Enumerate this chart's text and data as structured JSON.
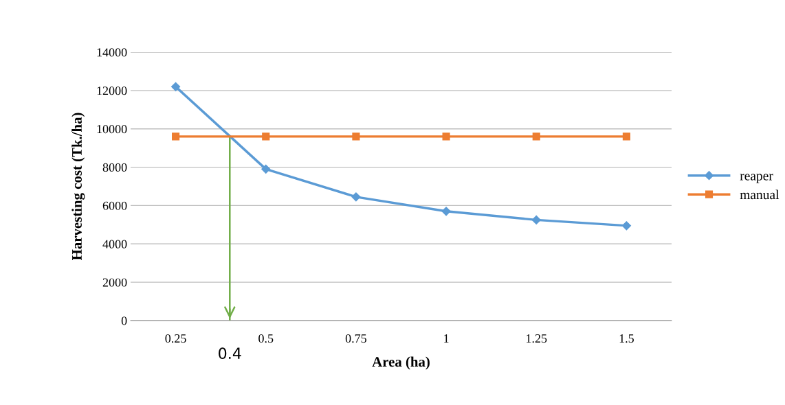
{
  "chart_data": {
    "type": "line",
    "xlabel": "Area (ha)",
    "ylabel": "Harvesting cost (Tk./ha)",
    "x": [
      0.25,
      0.5,
      0.75,
      1,
      1.25,
      1.5
    ],
    "series": [
      {
        "name": "reaper",
        "color": "#5b9bd5",
        "marker": "diamond",
        "values": [
          12200,
          7900,
          6450,
          5700,
          5250,
          4950
        ]
      },
      {
        "name": "manual",
        "color": "#ed7d31",
        "marker": "square",
        "values": [
          9600,
          9600,
          9600,
          9600,
          9600,
          9600
        ]
      },
      {
        "color": "#70ad47",
        "x": [
          0.4,
          0.4
        ],
        "values": [
          9600,
          0
        ],
        "marker": "none"
      }
    ],
    "xlim": [
      0.125,
      1.625
    ],
    "xticks": [
      0.25,
      0.5,
      0.75,
      1,
      1.25,
      1.5
    ],
    "ylim": [
      0,
      14000
    ],
    "yticks": [
      0,
      2000,
      4000,
      6000,
      8000,
      10000,
      12000,
      14000
    ],
    "grid": "y",
    "legend": "right",
    "annotations": [
      {
        "text": "0.4",
        "x": 0.4,
        "y": 0
      }
    ]
  }
}
